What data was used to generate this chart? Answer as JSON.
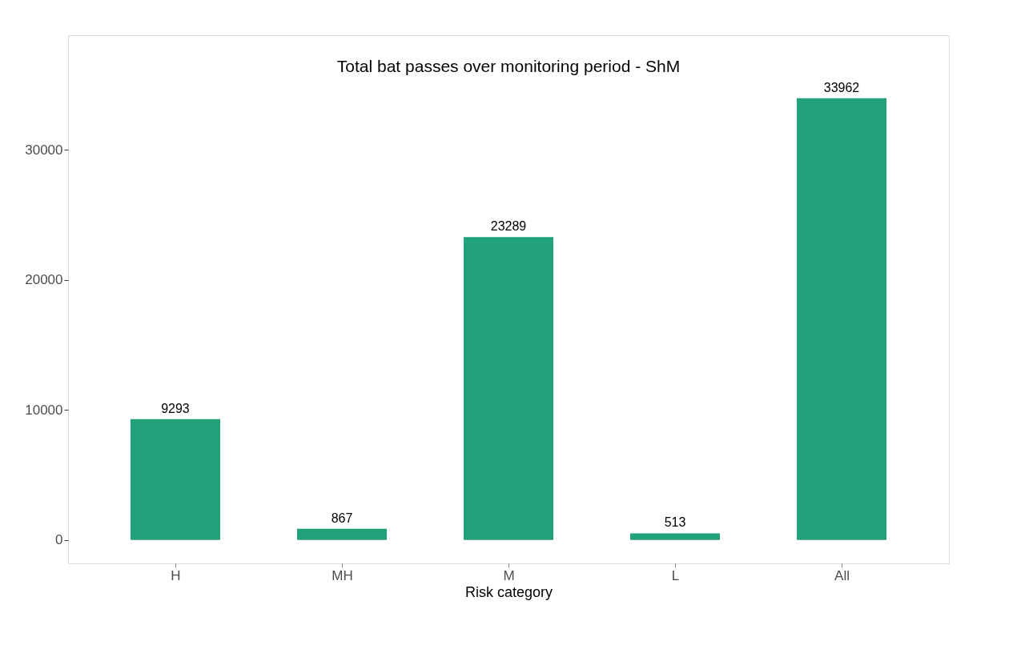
{
  "chart_data": {
    "type": "bar",
    "title": "Total bat passes over monitoring period - ShM",
    "xlabel": "Risk category",
    "categories": [
      "H",
      "MH",
      "M",
      "L",
      "All"
    ],
    "values": [
      9293,
      867,
      23289,
      513,
      33962
    ],
    "color": "#21a17a",
    "ylim": [
      -1800,
      38800
    ],
    "yticks": [
      0,
      10000,
      20000,
      30000
    ],
    "grid": false,
    "data_labels": true
  }
}
